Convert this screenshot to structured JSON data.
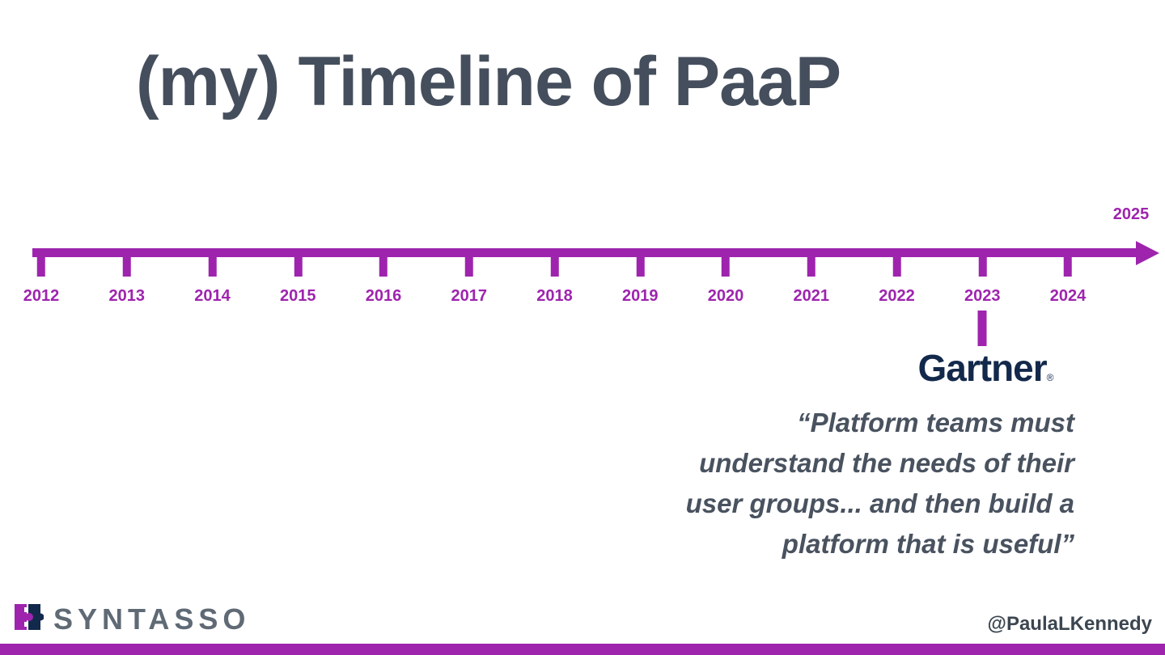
{
  "slide": {
    "title": "(my) Timeline of PaaP"
  },
  "timeline": {
    "years": [
      "2012",
      "2013",
      "2014",
      "2015",
      "2016",
      "2017",
      "2018",
      "2019",
      "2020",
      "2021",
      "2022",
      "2023",
      "2024"
    ],
    "end_year": "2025",
    "callout": {
      "year": "2023",
      "brand": "Gartner",
      "registered_mark": "®",
      "quote": "“Platform teams must\nunderstand the needs of their\nuser groups... and then build a\nplatform that is useful”"
    }
  },
  "footer": {
    "logo_text": "SYNTASSO",
    "handle": "@PaulaLKennedy"
  },
  "colors": {
    "accent": "#9e24ae",
    "title_text": "#454e5c",
    "quote_text": "#49525f",
    "gartner_navy": "#13294b",
    "logo_gray": "#5f6a75",
    "handle_text": "#3c4650"
  }
}
